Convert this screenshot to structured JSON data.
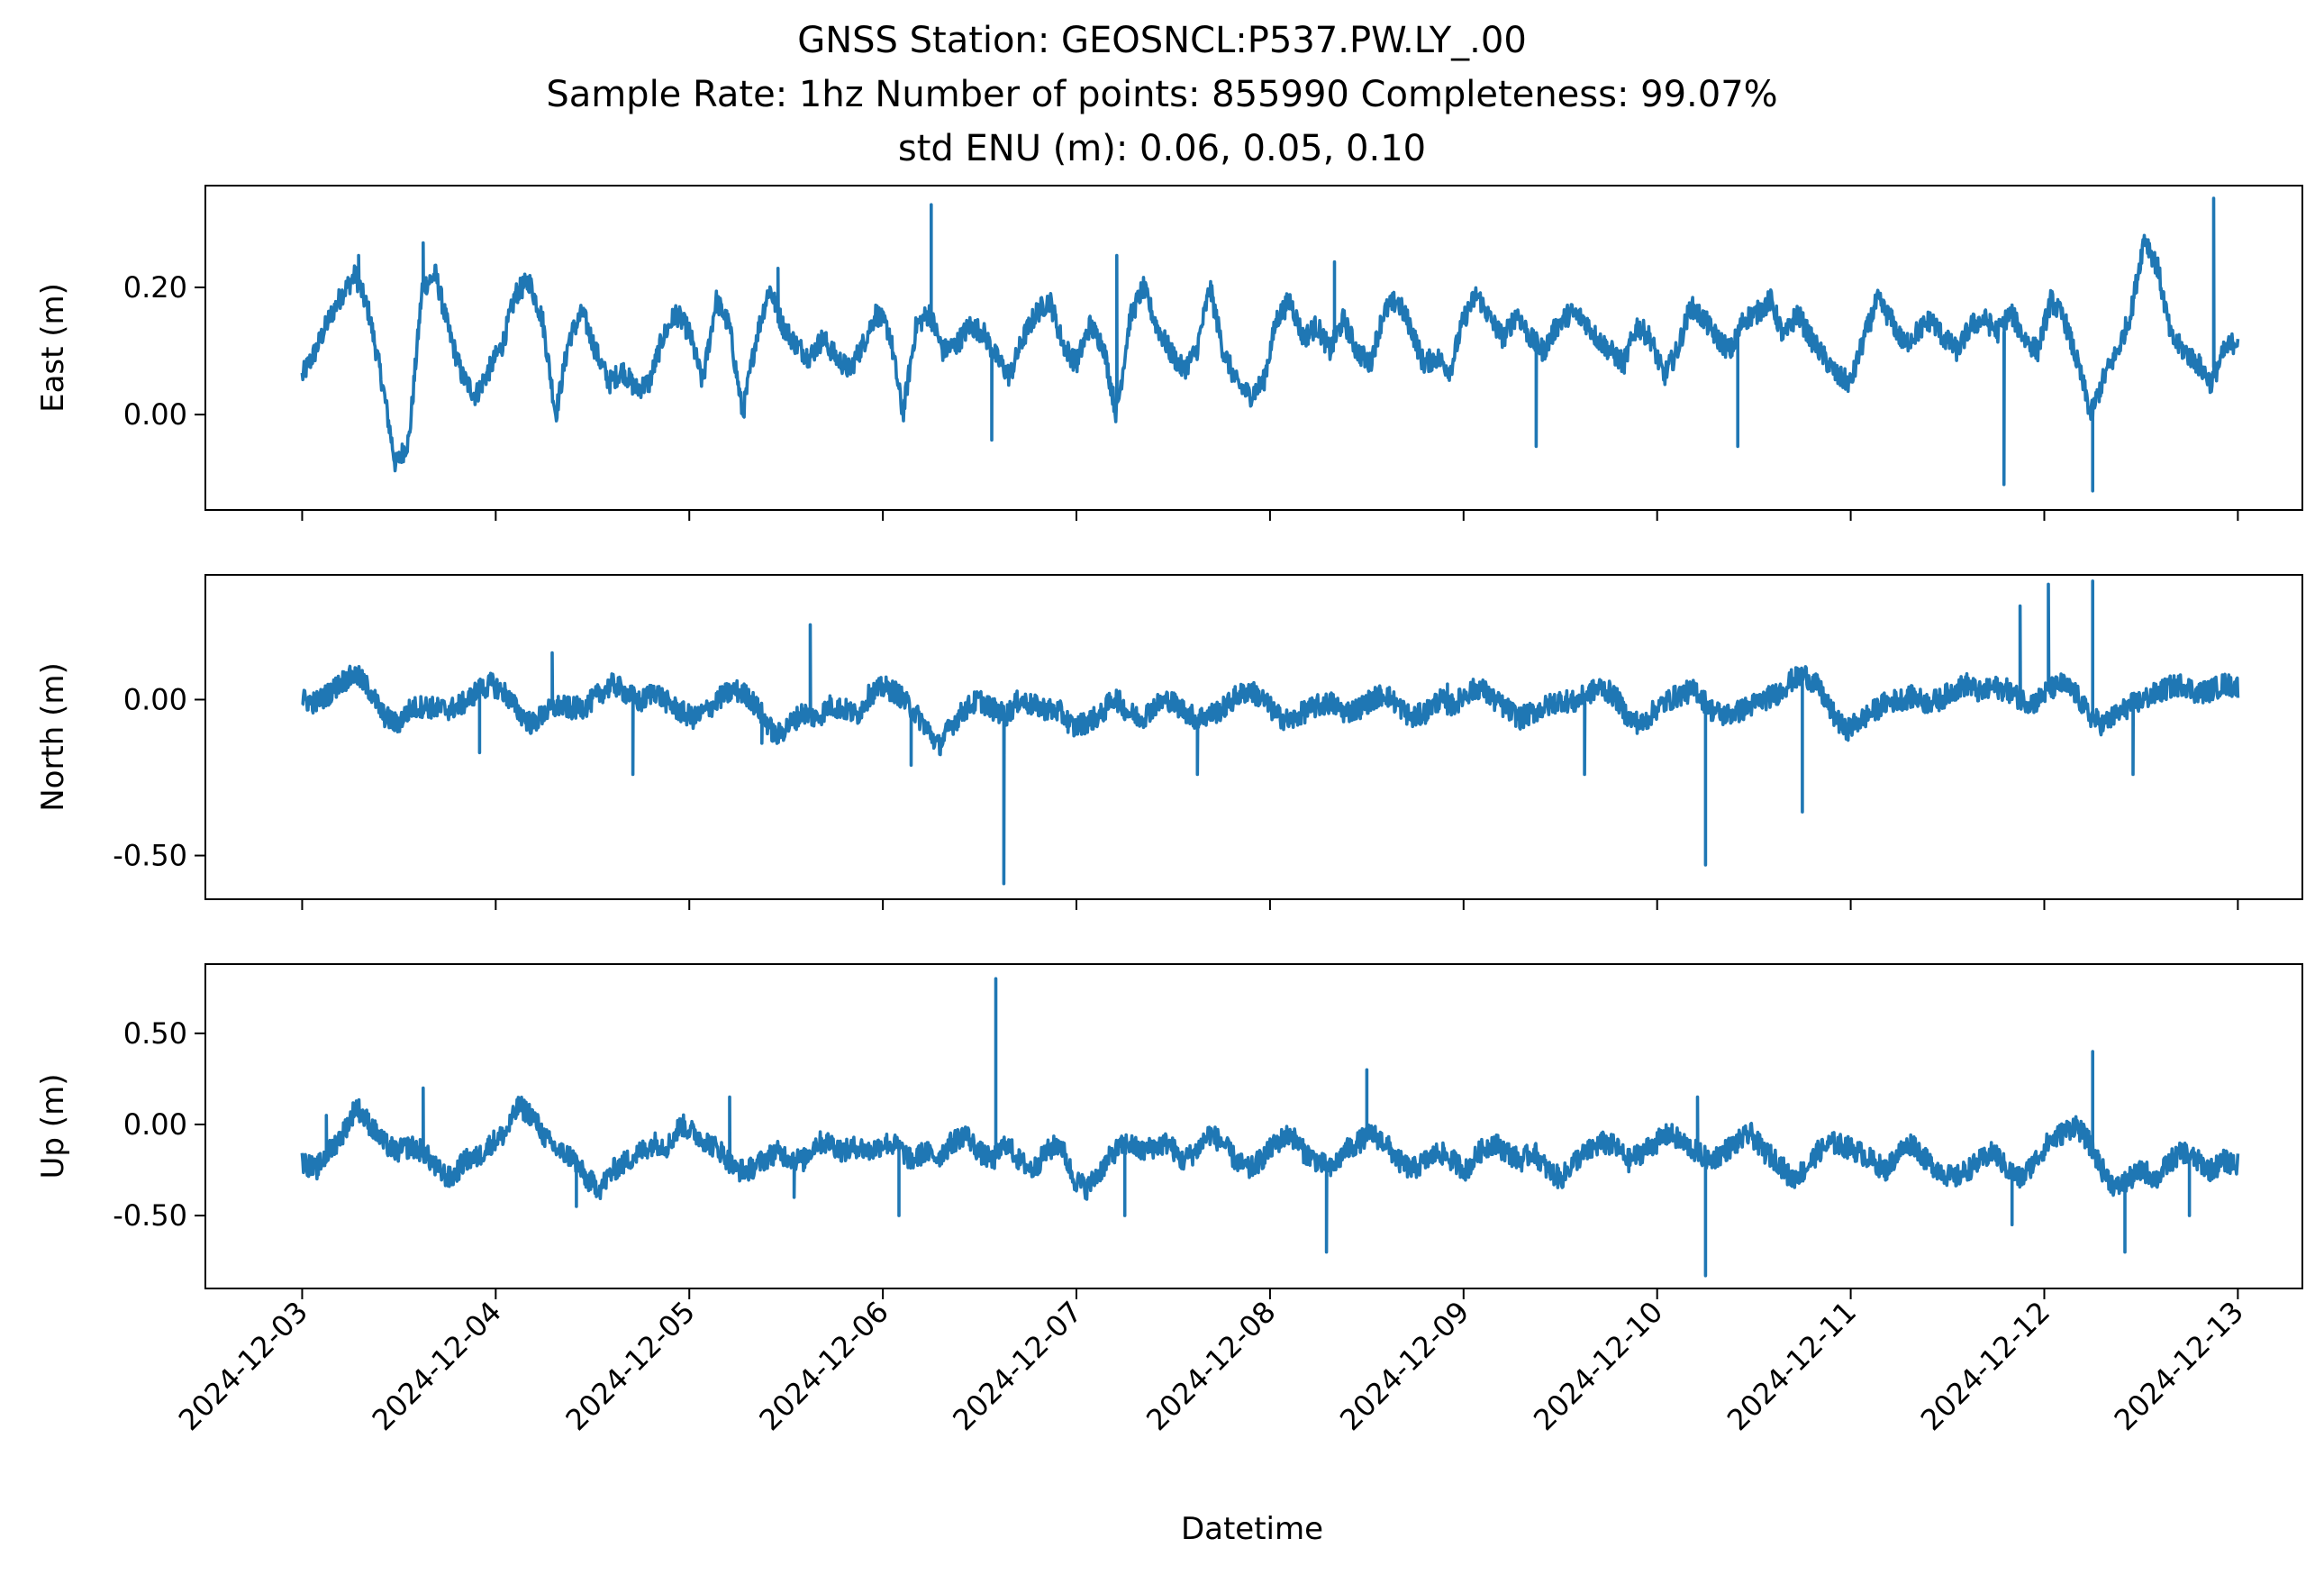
{
  "title_lines": [
    "GNSS Station: GEOSNCL:P537.PW.LY_.00",
    "Sample Rate: 1hz   Number of points: 855990    Completeness:  99.07%",
    "std ENU (m):  0.06, 0.05, 0.10"
  ],
  "xlabel": "Datetime",
  "line_color": "#1f77b4",
  "chart_data": {
    "type": "line",
    "xlim": [
      "2024-12-02T12:00",
      "2024-12-13T08:00"
    ],
    "x_ticks": [
      "2024-12-03",
      "2024-12-04",
      "2024-12-05",
      "2024-12-06",
      "2024-12-07",
      "2024-12-08",
      "2024-12-09",
      "2024-12-10",
      "2024-12-11",
      "2024-12-12",
      "2024-12-13"
    ],
    "x_range": [
      "2024-12-03",
      "2024-12-13"
    ],
    "panels": [
      {
        "ylabel": "East (m)",
        "ylim": [
          -0.15,
          0.36
        ],
        "yticks": [
          0.0,
          0.2
        ],
        "ytick_labels": [
          "0.00",
          "0.20"
        ],
        "trend": [
          0.06,
          0.1,
          0.15,
          0.19,
          0.22,
          0.16,
          0.05,
          -0.08,
          -0.04,
          0.2,
          0.22,
          0.13,
          0.06,
          0.03,
          0.07,
          0.11,
          0.19,
          0.21,
          0.15,
          0.0,
          0.12,
          0.16,
          0.1,
          0.05,
          0.07,
          0.04,
          0.05,
          0.12,
          0.16,
          0.13,
          0.05,
          0.18,
          0.14,
          0.0,
          0.12,
          0.2,
          0.14,
          0.11,
          0.09,
          0.12,
          0.09,
          0.07,
          0.11,
          0.16,
          0.13,
          0.0,
          0.14,
          0.16,
          0.1,
          0.11,
          0.14,
          0.13,
          0.09,
          0.06,
          0.12,
          0.16,
          0.18,
          0.11,
          0.08,
          0.14,
          0.11,
          0.0,
          0.15,
          0.2,
          0.14,
          0.1,
          0.07,
          0.1,
          0.2,
          0.1,
          0.05,
          0.03,
          0.05,
          0.15,
          0.18,
          0.12,
          0.14,
          0.1,
          0.15,
          0.1,
          0.08,
          0.16,
          0.18,
          0.14,
          0.08,
          0.09,
          0.07,
          0.15,
          0.19,
          0.15,
          0.12,
          0.16,
          0.12,
          0.1,
          0.14,
          0.16,
          0.15,
          0.12,
          0.1,
          0.08,
          0.14,
          0.12,
          0.06,
          0.1,
          0.17,
          0.15,
          0.12,
          0.1,
          0.15,
          0.16,
          0.18,
          0.12,
          0.16,
          0.12,
          0.09,
          0.06,
          0.05,
          0.12,
          0.18,
          0.15,
          0.11,
          0.13,
          0.15,
          0.12,
          0.1,
          0.14,
          0.15,
          0.13,
          0.16,
          0.12,
          0.1,
          0.18,
          0.15,
          0.08,
          0.0,
          0.06,
          0.1,
          0.16,
          0.28,
          0.23,
          0.12,
          0.1,
          0.08,
          0.05,
          0.1,
          0.12
        ],
        "spikes": [
          [
            "2024-12-03T07:00",
            0.25
          ],
          [
            "2024-12-03T15:00",
            0.27
          ],
          [
            "2024-12-05T11:00",
            0.23
          ],
          [
            "2024-12-06T06:00",
            0.33
          ],
          [
            "2024-12-06T13:30",
            -0.04
          ],
          [
            "2024-12-07T05:00",
            0.25
          ],
          [
            "2024-12-08T08:00",
            0.24
          ],
          [
            "2024-12-09T09:00",
            -0.05
          ],
          [
            "2024-12-10T10:00",
            -0.05
          ],
          [
            "2024-12-11T19:00",
            -0.11
          ],
          [
            "2024-12-12T06:00",
            -0.12
          ],
          [
            "2024-12-12T21:00",
            0.34
          ]
        ]
      },
      {
        "ylabel": "North (m)",
        "ylim": [
          -0.64,
          0.4
        ],
        "yticks": [
          -0.5,
          0.0
        ],
        "ytick_labels": [
          "-0.50",
          "0.00"
        ],
        "trend": [
          0.0,
          -0.01,
          0.02,
          0.06,
          0.08,
          0.03,
          -0.05,
          -0.08,
          -0.03,
          -0.02,
          -0.03,
          -0.03,
          -0.01,
          0.03,
          0.05,
          0.02,
          -0.04,
          -0.08,
          -0.04,
          -0.02,
          -0.03,
          -0.02,
          0.02,
          0.05,
          0.02,
          -0.01,
          0.03,
          -0.01,
          -0.04,
          -0.06,
          -0.03,
          0.01,
          0.03,
          0.01,
          -0.05,
          -0.12,
          -0.08,
          -0.04,
          -0.06,
          -0.02,
          -0.03,
          -0.05,
          0.02,
          0.04,
          0.02,
          -0.03,
          -0.08,
          -0.15,
          -0.08,
          -0.03,
          0.0,
          -0.03,
          -0.05,
          0.0,
          -0.02,
          -0.03,
          -0.04,
          -0.09,
          -0.07,
          -0.05,
          0.01,
          -0.04,
          -0.06,
          -0.02,
          0.0,
          -0.03,
          -0.06,
          -0.05,
          -0.03,
          0.01,
          0.03,
          0.0,
          -0.05,
          -0.07,
          -0.04,
          -0.02,
          -0.01,
          -0.04,
          -0.03,
          0.0,
          0.02,
          -0.02,
          -0.06,
          -0.04,
          0.0,
          -0.02,
          0.02,
          0.04,
          0.0,
          -0.03,
          -0.06,
          -0.04,
          -0.02,
          0.0,
          -0.01,
          0.02,
          0.04,
          0.01,
          -0.06,
          -0.08,
          -0.03,
          0.0,
          0.02,
          0.03,
          -0.03,
          -0.05,
          -0.04,
          -0.02,
          0.0,
          0.02,
          0.06,
          0.08,
          0.04,
          -0.04,
          -0.1,
          -0.07,
          -0.04,
          -0.01,
          0.0,
          0.01,
          -0.01,
          0.0,
          0.03,
          0.05,
          0.02,
          0.04,
          0.03,
          0.0,
          -0.01,
          0.03,
          0.05,
          0.02,
          -0.05,
          -0.08,
          -0.05,
          -0.02,
          0.0,
          0.02,
          0.04,
          0.05,
          0.02,
          0.03,
          0.05,
          0.04
        ],
        "spikes": [
          [
            "2024-12-03T22:00",
            -0.17
          ],
          [
            "2024-12-04T07:00",
            0.15
          ],
          [
            "2024-12-04T17:00",
            -0.24
          ],
          [
            "2024-12-05T09:00",
            -0.14
          ],
          [
            "2024-12-05T15:00",
            0.24
          ],
          [
            "2024-12-06T03:30",
            -0.21
          ],
          [
            "2024-12-06T15:00",
            -0.59
          ],
          [
            "2024-12-07T15:00",
            -0.24
          ],
          [
            "2024-12-08T22:00",
            0.05
          ],
          [
            "2024-12-09T15:00",
            -0.24
          ],
          [
            "2024-12-10T06:00",
            -0.53
          ],
          [
            "2024-12-10T18:00",
            -0.36
          ],
          [
            "2024-12-11T21:00",
            0.3
          ],
          [
            "2024-12-12T00:30",
            0.37
          ],
          [
            "2024-12-12T06:00",
            0.38
          ],
          [
            "2024-12-12T11:00",
            -0.24
          ]
        ]
      },
      {
        "ylabel": "Up (m)",
        "ylim": [
          -0.9,
          0.88
        ],
        "yticks": [
          -0.5,
          0.0,
          0.5
        ],
        "ytick_labels": [
          "-0.50",
          "0.00",
          "0.50"
        ],
        "trend": [
          -0.2,
          -0.25,
          -0.15,
          -0.05,
          0.1,
          0.0,
          -0.1,
          -0.15,
          -0.12,
          -0.15,
          -0.25,
          -0.3,
          -0.2,
          -0.18,
          -0.1,
          -0.05,
          0.1,
          0.05,
          -0.08,
          -0.15,
          -0.18,
          -0.3,
          -0.35,
          -0.25,
          -0.2,
          -0.15,
          -0.1,
          -0.12,
          0.0,
          -0.05,
          -0.1,
          -0.15,
          -0.25,
          -0.25,
          -0.2,
          -0.15,
          -0.18,
          -0.2,
          -0.1,
          -0.1,
          -0.15,
          -0.12,
          -0.15,
          -0.1,
          -0.12,
          -0.2,
          -0.15,
          -0.18,
          -0.1,
          -0.05,
          -0.15,
          -0.2,
          -0.1,
          -0.2,
          -0.25,
          -0.15,
          -0.1,
          -0.3,
          -0.35,
          -0.25,
          -0.15,
          -0.1,
          -0.15,
          -0.12,
          -0.1,
          -0.2,
          -0.15,
          -0.05,
          -0.1,
          -0.2,
          -0.25,
          -0.18,
          -0.1,
          -0.05,
          -0.15,
          -0.2,
          -0.25,
          -0.15,
          -0.1,
          -0.05,
          -0.1,
          -0.2,
          -0.25,
          -0.2,
          -0.15,
          -0.2,
          -0.25,
          -0.15,
          -0.1,
          -0.15,
          -0.2,
          -0.15,
          -0.25,
          -0.3,
          -0.2,
          -0.15,
          -0.1,
          -0.12,
          -0.2,
          -0.15,
          -0.1,
          -0.05,
          -0.1,
          -0.15,
          -0.2,
          -0.15,
          -0.1,
          -0.05,
          -0.15,
          -0.2,
          -0.3,
          -0.25,
          -0.15,
          -0.1,
          -0.12,
          -0.15,
          -0.2,
          -0.25,
          -0.15,
          -0.1,
          -0.2,
          -0.25,
          -0.3,
          -0.25,
          -0.2,
          -0.15,
          -0.25,
          -0.3,
          -0.2,
          -0.1,
          -0.05,
          0.0,
          -0.1,
          -0.25,
          -0.35,
          -0.3,
          -0.25,
          -0.3,
          -0.2,
          -0.15,
          -0.2,
          -0.25,
          -0.2,
          -0.22
        ],
        "spikes": [
          [
            "2024-12-03T03:00",
            0.05
          ],
          [
            "2024-12-03T15:00",
            0.2
          ],
          [
            "2024-12-04T10:00",
            -0.45
          ],
          [
            "2024-12-05T05:00",
            0.15
          ],
          [
            "2024-12-05T13:00",
            -0.4
          ],
          [
            "2024-12-06T02:00",
            -0.5
          ],
          [
            "2024-12-06T14:00",
            0.8
          ],
          [
            "2024-12-07T06:00",
            -0.5
          ],
          [
            "2024-12-08T07:00",
            -0.7
          ],
          [
            "2024-12-08T12:00",
            0.3
          ],
          [
            "2024-12-10T05:00",
            0.15
          ],
          [
            "2024-12-10T06:00",
            -0.83
          ],
          [
            "2024-12-11T20:00",
            -0.55
          ],
          [
            "2024-12-12T06:00",
            0.4
          ],
          [
            "2024-12-12T10:00",
            -0.7
          ],
          [
            "2024-12-12T18:00",
            -0.5
          ]
        ]
      }
    ]
  }
}
